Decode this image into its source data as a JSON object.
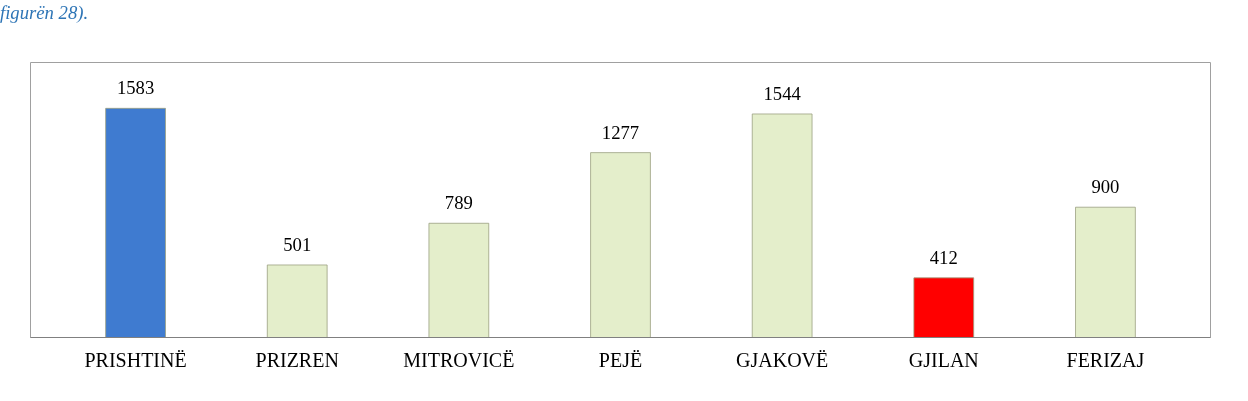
{
  "chart_data": {
    "type": "bar",
    "categories": [
      "PRISHTINË",
      "PRIZREN",
      "MITROVICË",
      "PEJË",
      "GJAKOVË",
      "GJILAN",
      "FERIZAJ"
    ],
    "values": [
      1583,
      501,
      789,
      1277,
      1544,
      412,
      900
    ],
    "colors": [
      "#3f7bd0",
      "#e4eecb",
      "#e4eecb",
      "#e4eecb",
      "#e4eecb",
      "#ff0000",
      "#e4eecb"
    ],
    "data_labels": true,
    "annotations": [
      "figurën 28)."
    ]
  }
}
